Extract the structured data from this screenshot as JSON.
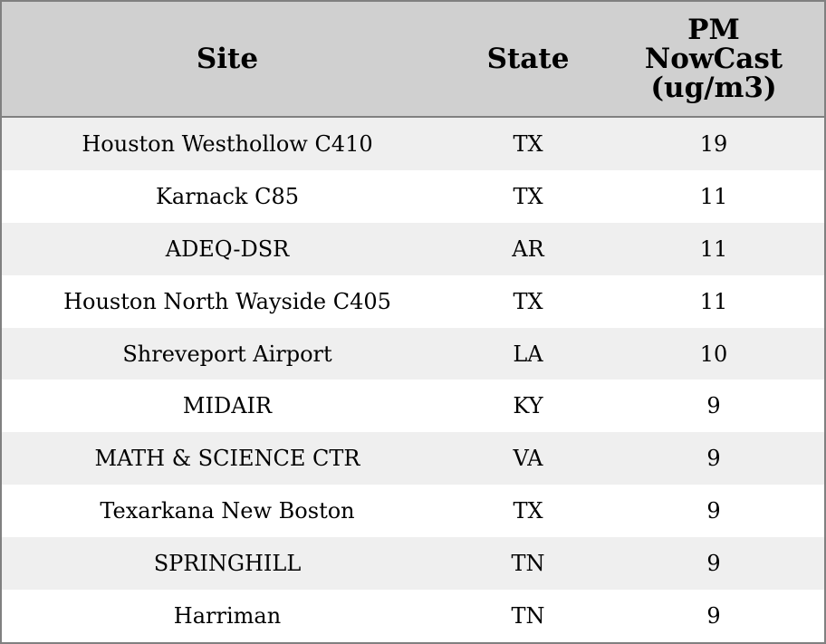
{
  "chart_data": {
    "type": "table",
    "columns": [
      "Site",
      "State",
      "PM NowCast (ug/m3)"
    ],
    "rows": [
      [
        "Houston Westhollow C410",
        "TX",
        "19"
      ],
      [
        "Karnack C85",
        "TX",
        "11"
      ],
      [
        "ADEQ-DSR",
        "AR",
        "11"
      ],
      [
        "Houston North Wayside C405",
        "TX",
        "11"
      ],
      [
        "Shreveport Airport",
        "LA",
        "10"
      ],
      [
        "MIDAIR",
        "KY",
        "9"
      ],
      [
        "MATH & SCIENCE CTR",
        "VA",
        "9"
      ],
      [
        "Texarkana New Boston",
        "TX",
        "9"
      ],
      [
        "SPRINGHILL",
        "TN",
        "9"
      ],
      [
        "Harriman",
        "TN",
        "9"
      ]
    ],
    "colors": {
      "header_bg": "#d0d0d0",
      "stripe_bg": "#efefef",
      "border": "#808080"
    }
  }
}
